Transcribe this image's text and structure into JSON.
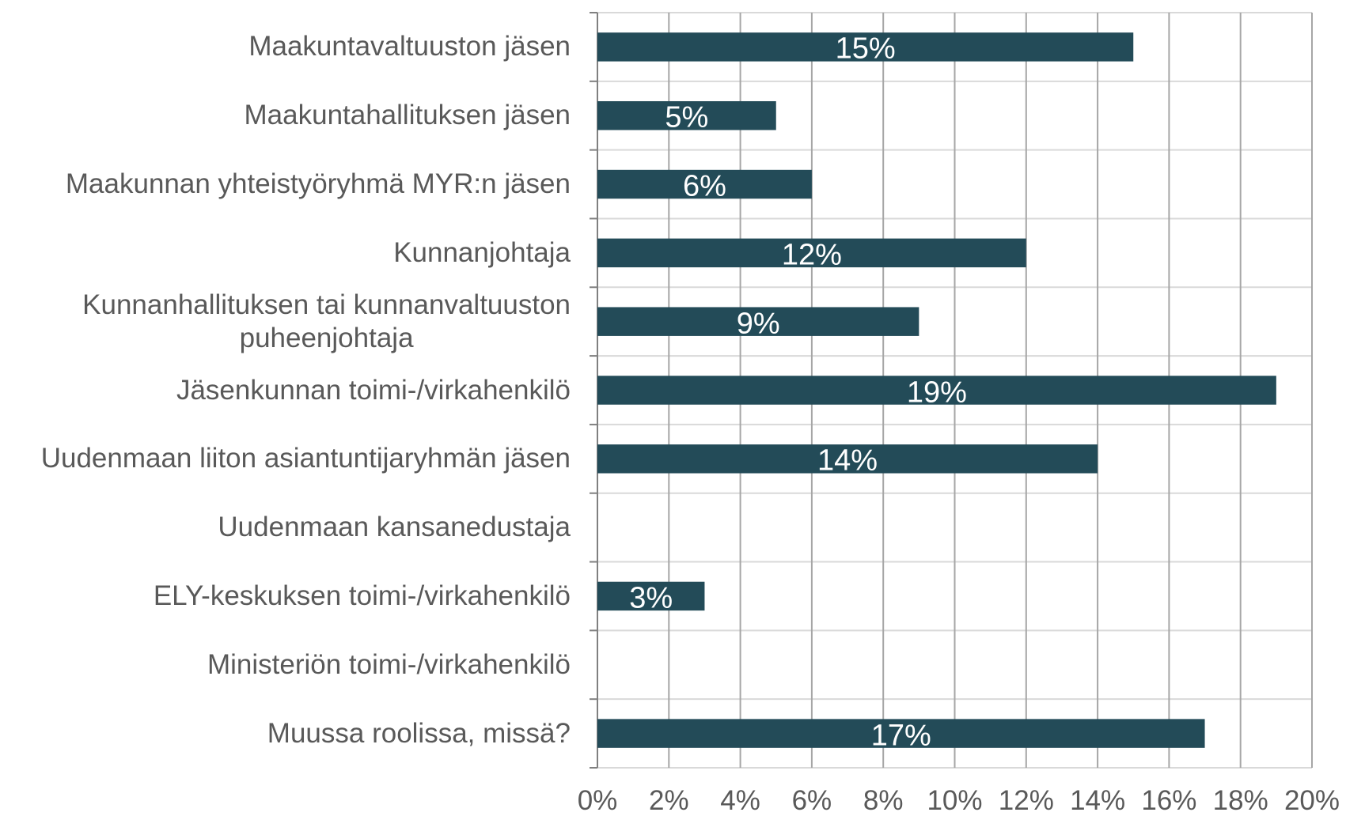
{
  "chart_data": {
    "type": "bar",
    "orientation": "horizontal",
    "categories": [
      "Maakuntavaltuuston jäsen",
      "Maakuntahallituksen jäsen",
      "Maakunnan yhteistyöryhmä MYR:n jäsen",
      "Kunnanjohtaja",
      "Kunnanhallituksen tai kunnanvaltuuston\npuheenjohtaja",
      "Jäsenkunnan toimi-/virkahenkilö",
      "Uudenmaan liiton asiantuntijaryhmän jäsen",
      "Uudenmaan kansanedustaja",
      "ELY-keskuksen toimi-/virkahenkilö",
      "Ministeriön toimi-/virkahenkilö",
      "Muussa roolissa, missä?"
    ],
    "values": [
      15,
      5,
      6,
      12,
      9,
      19,
      14,
      0,
      3,
      0,
      17
    ],
    "value_labels": [
      "15%",
      "5%",
      "6%",
      "12%",
      "9%",
      "19%",
      "14%",
      null,
      "3%",
      null,
      "17%"
    ],
    "color": "#234b58",
    "xlim": [
      0,
      20
    ],
    "xticks": [
      {
        "value": 0,
        "label": "0%"
      },
      {
        "value": 2,
        "label": "2%"
      },
      {
        "value": 4,
        "label": "4%"
      },
      {
        "value": 6,
        "label": "6%"
      },
      {
        "value": 8,
        "label": "8%"
      },
      {
        "value": 10,
        "label": "10%"
      },
      {
        "value": 12,
        "label": "12%"
      },
      {
        "value": 14,
        "label": "14%"
      },
      {
        "value": 16,
        "label": "16%"
      },
      {
        "value": 18,
        "label": "18%"
      },
      {
        "value": 20,
        "label": "20%"
      }
    ],
    "grid": true
  }
}
